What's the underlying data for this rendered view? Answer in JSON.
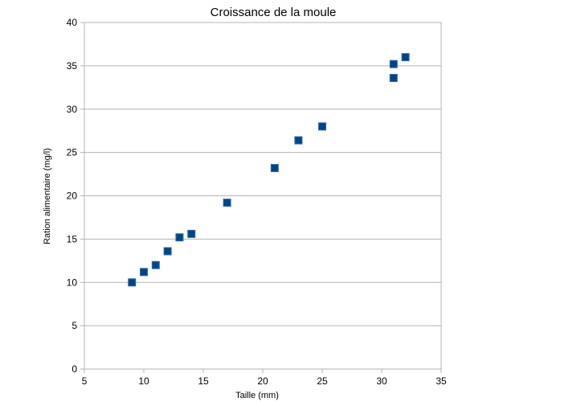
{
  "chart_data": {
    "type": "scatter",
    "title": "Croissance de la moule",
    "xlabel": "Taille (mm)",
    "ylabel": "Ration alimentaire (mg/l)",
    "xlim": [
      5,
      35
    ],
    "ylim": [
      0,
      40
    ],
    "xticks": [
      5,
      10,
      15,
      20,
      25,
      30,
      35
    ],
    "yticks": [
      0,
      5,
      10,
      15,
      20,
      25,
      30,
      35,
      40
    ],
    "grid": "horizontal",
    "legend": "none",
    "marker": "square",
    "marker_color": "#004586",
    "points": [
      {
        "x": 9,
        "y": 10
      },
      {
        "x": 10,
        "y": 11.2
      },
      {
        "x": 11,
        "y": 12
      },
      {
        "x": 12,
        "y": 13.6
      },
      {
        "x": 13,
        "y": 15.2
      },
      {
        "x": 14,
        "y": 15.6
      },
      {
        "x": 17,
        "y": 19.2
      },
      {
        "x": 21,
        "y": 23.2
      },
      {
        "x": 23,
        "y": 26.4
      },
      {
        "x": 25,
        "y": 28
      },
      {
        "x": 31,
        "y": 33.6
      },
      {
        "x": 31,
        "y": 35.2
      },
      {
        "x": 32,
        "y": 36
      }
    ]
  }
}
